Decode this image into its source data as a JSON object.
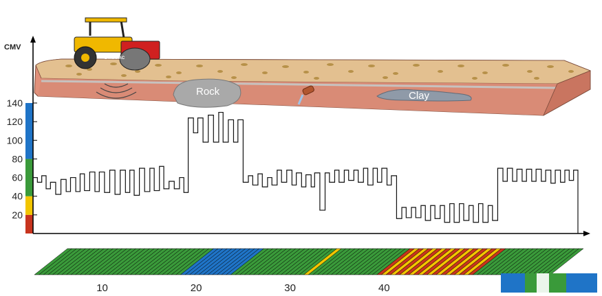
{
  "y_axis_label": "CMV",
  "terrain_labels": {
    "rock": "Rock",
    "clay": "Clay"
  },
  "roller_brand": "DYNAPAC",
  "chart_data": {
    "type": "line",
    "ylabel": "CMV",
    "ylim": [
      0,
      140
    ],
    "xlim": [
      0,
      58
    ],
    "y_ticks": [
      20,
      40,
      60,
      80,
      100,
      120,
      140
    ],
    "x_ticks": [
      10,
      20,
      30,
      40
    ],
    "scale_bands": [
      {
        "from": 0,
        "to": 20,
        "color": "#c8341e"
      },
      {
        "from": 20,
        "to": 40,
        "color": "#f2c500"
      },
      {
        "from": 40,
        "to": 80,
        "color": "#3a9a3a"
      },
      {
        "from": 80,
        "to": 140,
        "color": "#1f74c7"
      }
    ],
    "series": [
      {
        "values": [
          [
            0.0,
            60
          ],
          [
            0.5,
            55
          ],
          [
            1.0,
            62
          ],
          [
            1.5,
            48
          ],
          [
            2.0,
            55
          ],
          [
            2.6,
            42
          ],
          [
            3.2,
            58
          ],
          [
            3.8,
            45
          ],
          [
            4.3,
            60
          ],
          [
            4.9,
            45
          ],
          [
            5.4,
            64
          ],
          [
            5.9,
            46
          ],
          [
            6.5,
            66
          ],
          [
            7.1,
            45
          ],
          [
            7.6,
            66
          ],
          [
            8.2,
            44
          ],
          [
            8.8,
            68
          ],
          [
            9.4,
            42
          ],
          [
            10.0,
            68
          ],
          [
            10.6,
            44
          ],
          [
            11.1,
            68
          ],
          [
            11.6,
            41
          ],
          [
            12.2,
            70
          ],
          [
            12.8,
            45
          ],
          [
            13.4,
            70
          ],
          [
            13.9,
            46
          ],
          [
            14.5,
            72
          ],
          [
            15.0,
            48
          ],
          [
            15.6,
            56
          ],
          [
            16.2,
            48
          ],
          [
            16.8,
            60
          ],
          [
            17.3,
            44
          ],
          [
            17.8,
            124
          ],
          [
            18.4,
            108
          ],
          [
            18.9,
            124
          ],
          [
            19.5,
            98
          ],
          [
            20.1,
            127
          ],
          [
            20.7,
            98
          ],
          [
            21.3,
            130
          ],
          [
            21.8,
            98
          ],
          [
            22.4,
            122
          ],
          [
            23.0,
            98
          ],
          [
            23.5,
            122
          ],
          [
            24.1,
            55
          ],
          [
            24.7,
            62
          ],
          [
            25.2,
            52
          ],
          [
            25.8,
            64
          ],
          [
            26.3,
            50
          ],
          [
            26.9,
            60
          ],
          [
            27.4,
            52
          ],
          [
            28.0,
            68
          ],
          [
            28.5,
            55
          ],
          [
            29.1,
            68
          ],
          [
            29.7,
            52
          ],
          [
            30.2,
            65
          ],
          [
            30.8,
            50
          ],
          [
            31.3,
            63
          ],
          [
            31.9,
            50
          ],
          [
            32.3,
            65
          ],
          [
            32.9,
            25
          ],
          [
            33.5,
            65
          ],
          [
            34.0,
            55
          ],
          [
            34.6,
            68
          ],
          [
            35.1,
            55
          ],
          [
            35.7,
            68
          ],
          [
            36.2,
            57
          ],
          [
            36.8,
            68
          ],
          [
            37.3,
            55
          ],
          [
            37.9,
            70
          ],
          [
            38.4,
            52
          ],
          [
            39.0,
            70
          ],
          [
            39.5,
            55
          ],
          [
            40.0,
            70
          ],
          [
            40.6,
            52
          ],
          [
            41.1,
            62
          ],
          [
            41.7,
            16
          ],
          [
            42.3,
            28
          ],
          [
            42.8,
            17
          ],
          [
            43.4,
            28
          ],
          [
            43.9,
            17
          ],
          [
            44.5,
            30
          ],
          [
            45.0,
            14
          ],
          [
            45.6,
            30
          ],
          [
            46.1,
            16
          ],
          [
            46.7,
            30
          ],
          [
            47.2,
            12
          ],
          [
            47.8,
            32
          ],
          [
            48.3,
            12
          ],
          [
            48.9,
            32
          ],
          [
            49.4,
            14
          ],
          [
            50.0,
            30
          ],
          [
            50.5,
            12
          ],
          [
            51.1,
            32
          ],
          [
            51.6,
            12
          ],
          [
            52.2,
            30
          ],
          [
            52.7,
            14
          ],
          [
            53.3,
            70
          ],
          [
            53.9,
            56
          ],
          [
            54.4,
            70
          ],
          [
            55.0,
            56
          ],
          [
            55.5,
            69
          ],
          [
            56.1,
            56
          ],
          [
            56.6,
            69
          ],
          [
            57.2,
            56
          ],
          [
            57.7,
            69
          ],
          [
            58.3,
            56
          ],
          [
            58.8,
            68
          ],
          [
            59.4,
            54
          ],
          [
            59.9,
            68
          ],
          [
            60.5,
            55
          ],
          [
            61.0,
            68
          ],
          [
            61.5,
            57
          ],
          [
            62.0,
            68
          ],
          [
            62.5,
            0
          ]
        ]
      }
    ]
  }
}
